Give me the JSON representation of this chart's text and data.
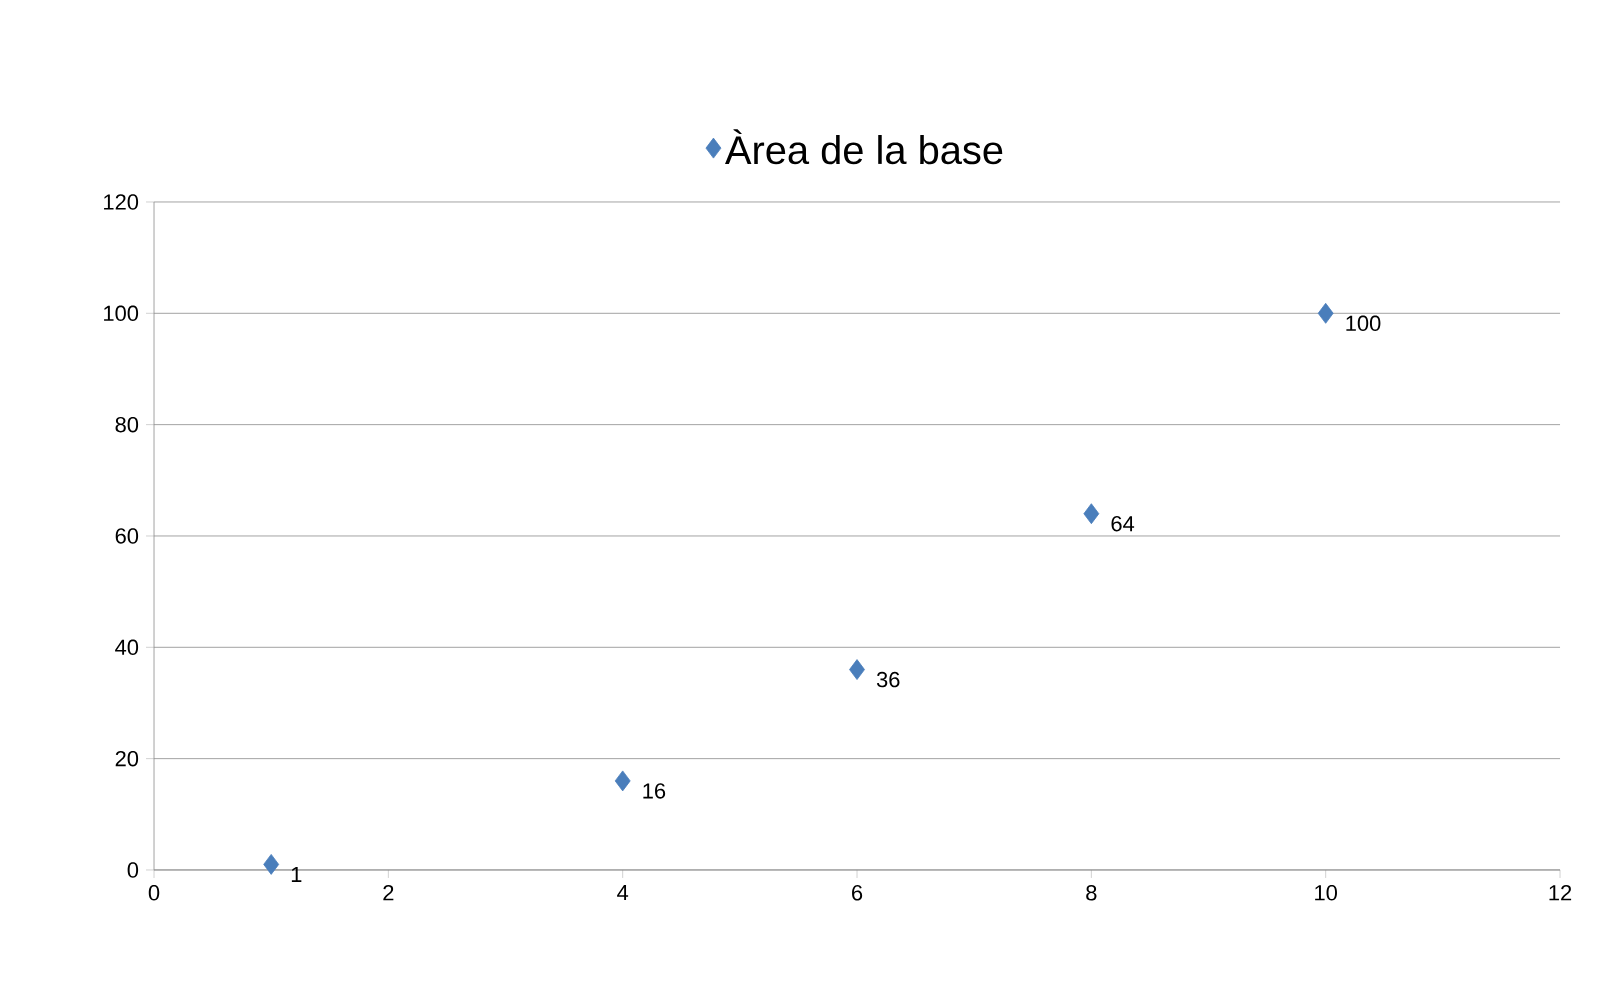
{
  "chart_data": {
    "type": "scatter",
    "x": [
      1,
      4,
      6,
      8,
      10
    ],
    "series": [
      {
        "name": "Àrea de la base",
        "color": "#4a7ebb",
        "values": [
          1,
          16,
          36,
          64,
          100
        ]
      }
    ],
    "xlim": [
      0,
      12
    ],
    "xticks": [
      0,
      2,
      4,
      6,
      8,
      10,
      12
    ],
    "ylim": [
      0,
      120
    ],
    "yticks": [
      0,
      20,
      40,
      60,
      80,
      100,
      120
    ],
    "grid": "y",
    "legend": "top",
    "marker": "diamond",
    "data_labels": true
  }
}
